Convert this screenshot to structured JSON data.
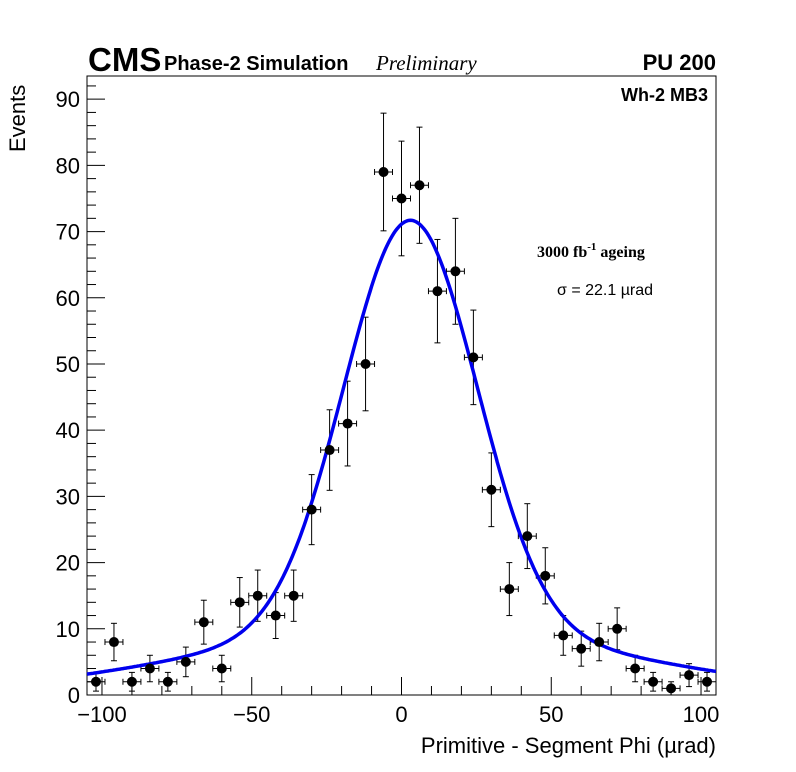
{
  "header": {
    "experiment": "CMS",
    "subtitle": "Phase-2 Simulation",
    "status": "Preliminary",
    "pileup": "PU 200"
  },
  "annotations": {
    "region": "Wh-2 MB3",
    "ageing_main": "3000 fb",
    "ageing_sup": "-1",
    "ageing_tail": " ageing",
    "sigma": "σ = 22.1 µrad"
  },
  "chart_data": {
    "type": "scatter",
    "title": "",
    "xlabel": "Primitive - Segment Phi (µrad)",
    "ylabel": "Events",
    "xlim": [
      -105,
      105
    ],
    "ylim": [
      0,
      93.5
    ],
    "xticks": [
      -100,
      -50,
      0,
      50,
      100
    ],
    "xtick_labels": [
      "−100",
      "−50",
      "0",
      "50",
      "100"
    ],
    "yticks": [
      0,
      10,
      20,
      30,
      40,
      50,
      60,
      70,
      80,
      90
    ],
    "ytick_labels": [
      "0",
      "10",
      "20",
      "30",
      "40",
      "50",
      "60",
      "70",
      "80",
      "90"
    ],
    "grid": false,
    "bin_width": 6,
    "series": [
      {
        "name": "data",
        "marker": "circle",
        "color": "#000000",
        "x": [
          -102,
          -96,
          -90,
          -84,
          -78,
          -72,
          -66,
          -60,
          -54,
          -48,
          -42,
          -36,
          -30,
          -24,
          -18,
          -12,
          -6,
          0,
          6,
          12,
          18,
          24,
          30,
          36,
          42,
          48,
          54,
          60,
          66,
          72,
          78,
          84,
          90,
          96,
          102
        ],
        "y": [
          2,
          8,
          2,
          4,
          2,
          5,
          11,
          4,
          14,
          15,
          12,
          15,
          28,
          37,
          41,
          50,
          79,
          75,
          77,
          61,
          64,
          51,
          31,
          16,
          24,
          18,
          9,
          7,
          8,
          10,
          4,
          2,
          1,
          3,
          2
        ],
        "error": "poisson"
      },
      {
        "name": "fit",
        "type": "line",
        "color": "#0000ee",
        "model": "double-gaussian",
        "params": {
          "narrow": {
            "amplitude": 62,
            "mean": 3,
            "sigma": 22.1
          },
          "broad": {
            "amplitude": 9.7,
            "mean": 3,
            "sigma": 72
          }
        }
      }
    ]
  }
}
